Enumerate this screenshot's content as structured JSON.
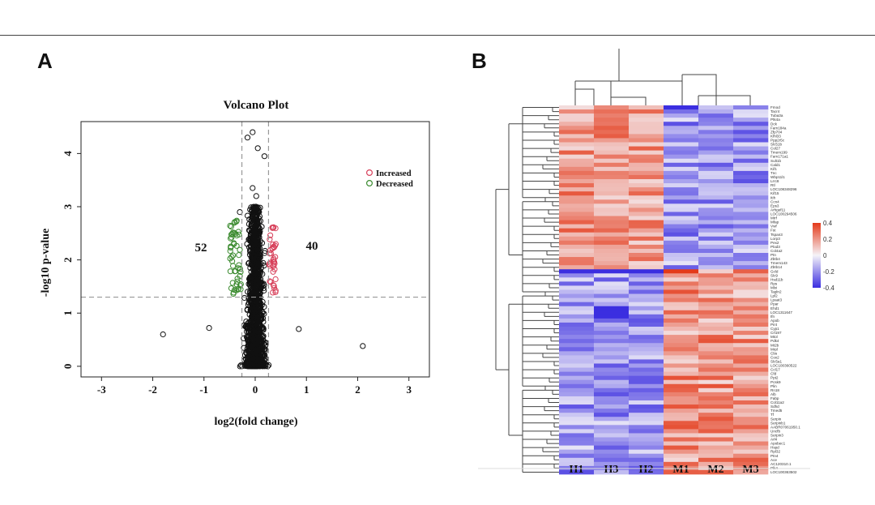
{
  "panels": {
    "a_letter": "A",
    "b_letter": "B"
  },
  "chart_data": [
    {
      "type": "scatter",
      "title": "Volcano Plot",
      "xlabel": "log2(fold change)",
      "ylabel": "-log10 p-value",
      "xlim": [
        -3.4,
        3.4
      ],
      "ylim": [
        -0.2,
        4.6
      ],
      "xticks": [
        -3,
        -2,
        -1,
        0,
        1,
        2,
        3
      ],
      "yticks": [
        0,
        1,
        2,
        3,
        4
      ],
      "thresholds": {
        "log2fc": [
          -0.26,
          0.26
        ],
        "neg_log10_p": 1.3
      },
      "legend": [
        {
          "label": "Increased",
          "color": "#d7405a"
        },
        {
          "label": "Decreased",
          "color": "#3a8a2e"
        }
      ],
      "annotations": {
        "decreased_count": "52",
        "increased_count": "40"
      },
      "colors": {
        "nonsignificant": "#111111",
        "increased": "#d7405a",
        "decreased": "#3a8a2e",
        "threshold_line": "#999999"
      },
      "highlight_points": [
        {
          "x": -1.8,
          "y": 0.6
        },
        {
          "x": 2.1,
          "y": 0.38
        },
        {
          "x": -0.9,
          "y": 0.72
        },
        {
          "x": 0.85,
          "y": 0.7
        },
        {
          "x": -0.05,
          "y": 4.4
        },
        {
          "x": 0.18,
          "y": 3.95
        },
        {
          "x": -0.15,
          "y": 4.3
        },
        {
          "x": 0.05,
          "y": 4.1
        },
        {
          "x": -0.3,
          "y": 2.9
        },
        {
          "x": -0.05,
          "y": 3.35
        },
        {
          "x": 0.02,
          "y": 3.2
        }
      ]
    },
    {
      "type": "heatmap",
      "columns": [
        "H1",
        "H3",
        "H2",
        "M1",
        "M2",
        "M3"
      ],
      "color_scale": {
        "min": -0.4,
        "max": 0.4,
        "low": "#3b2ee0",
        "mid": "#f5f3f8",
        "high": "#e43a1a",
        "ticks": [
          {
            "value": 0.4,
            "label": "0.4"
          },
          {
            "value": 0.2,
            "label": "0.2"
          },
          {
            "value": 0,
            "label": "0"
          },
          {
            "value": -0.2,
            "label": "-0.2"
          },
          {
            "value": -0.4,
            "label": "-0.4"
          }
        ]
      },
      "rows": [
        "Fmod",
        "Tacr4",
        "Tuba3a",
        "Ptk4a",
        "Dck",
        "Fam184a",
        "Zfp704",
        "Klhl33",
        "Ppp2r5c",
        "Slc51b",
        "Col27",
        "Tmem199",
        "Fam171a1",
        "Sult1b",
        "Cald1",
        "Kif1",
        "Tnc",
        "Wbp11l1",
        "Lrrc8",
        "Rtl",
        "LOC108348296",
        "Kif15",
        "Itih",
        "Ccn4",
        "Eps3",
        "Arhgef11",
        "LOC100294506",
        "Mtrf",
        "Mfap",
        "Vwf",
        "Fst",
        "Tspan3",
        "Lorp3",
        "Pex2",
        "Plod3",
        "Col4a2",
        "Ptn",
        "Zbtb4",
        "Tmem143",
        "Zbtb14",
        "Gcld",
        "Slc9",
        "Hsd11b",
        "Rps",
        "Mlxi",
        "Tagln2",
        "Lpl2",
        "Lpaat3",
        "Ppar",
        "Ehd1",
        "LOC1311647",
        "Ifn",
        "Apob",
        "Pir4",
        "Cyp1",
        "Crl197",
        "Mtol",
        "Pdk4",
        "Mt2b",
        "Mrpl",
        "Cbs",
        "Cox2",
        "Slc5a1",
        "LOC100360522",
        "Ccl17",
        "Cfd",
        "Ppt2",
        "Pcsk9",
        "Plin",
        "Rn18",
        "Alb",
        "Fabp",
        "Col11a2",
        "Sdhd",
        "Tmed5",
        "Tf",
        "Serpin",
        "Serpinb1",
        "AABR07061950.1",
        "Uncfb",
        "Serpin3",
        "Arl4",
        "Apobec1",
        "Hspd",
        "Rpl32",
        "Ptn4",
        "Ace",
        "AC120310.1",
        "Plk4",
        "LOC100363502"
      ]
    }
  ]
}
